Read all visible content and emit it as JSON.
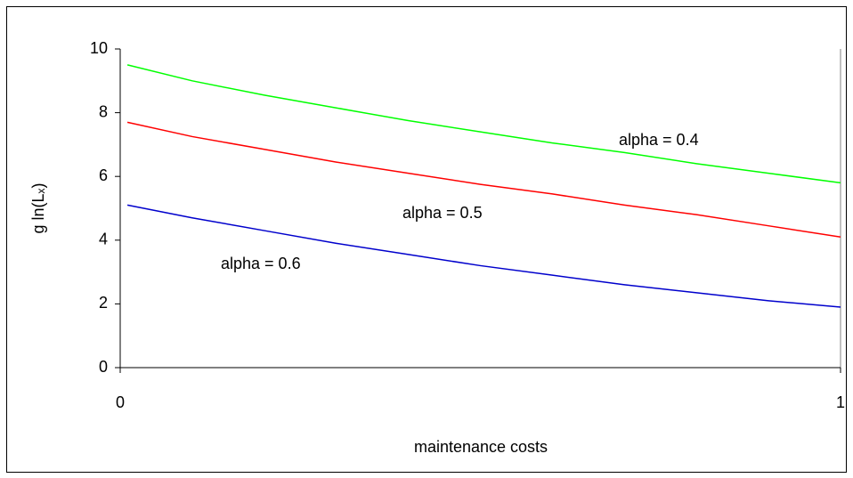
{
  "chart_data": {
    "type": "line",
    "x_label": "maintenance costs",
    "y_label": "g ln(Lₓ)",
    "x": [
      0.01,
      0.1,
      0.2,
      0.3,
      0.4,
      0.5,
      0.6,
      0.7,
      0.8,
      0.9,
      1.0
    ],
    "series": [
      {
        "name": "alpha = 0.4",
        "color": "#00ff00",
        "values": [
          9.5,
          9.0,
          8.55,
          8.15,
          7.75,
          7.4,
          7.05,
          6.75,
          6.4,
          6.1,
          5.8
        ]
      },
      {
        "name": "alpha = 0.5",
        "color": "#ff0000",
        "values": [
          7.7,
          7.25,
          6.85,
          6.45,
          6.1,
          5.75,
          5.45,
          5.1,
          4.8,
          4.45,
          4.1
        ]
      },
      {
        "name": "alpha = 0.6",
        "color": "#0000cc",
        "values": [
          5.1,
          4.7,
          4.3,
          3.9,
          3.55,
          3.2,
          2.9,
          2.6,
          2.35,
          2.1,
          1.9
        ]
      }
    ],
    "xlim": [
      0,
      1
    ],
    "xticks": [
      0,
      1
    ],
    "ylim": [
      0,
      10
    ],
    "yticks": [
      0,
      2,
      4,
      6,
      8,
      10
    ],
    "grid": false
  }
}
